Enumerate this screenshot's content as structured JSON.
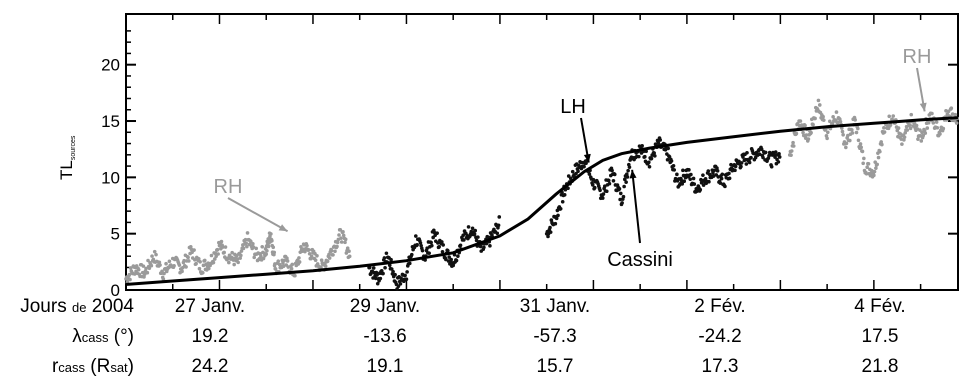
{
  "chart_data": {
    "type": "scatter",
    "title": "",
    "ylabel": "TL",
    "ylabel_sub": "sources",
    "xlim": [
      0,
      8.9
    ],
    "ylim": [
      0,
      24.5
    ],
    "yticks": [
      0,
      5,
      10,
      15,
      20
    ],
    "grid": false,
    "series": [
      {
        "color": "#9a9a9a",
        "segments": [
          {
            "x": [
              0.0,
              0.1,
              0.2,
              0.3,
              0.4,
              0.5,
              0.6,
              0.7,
              0.8,
              0.9,
              1.0,
              1.1,
              1.2,
              1.3,
              1.4,
              1.5,
              1.55,
              1.6,
              1.7,
              1.8,
              1.9,
              2.0,
              2.1,
              2.2,
              2.3,
              2.4
            ],
            "y": [
              1.0,
              2.0,
              1.5,
              3.0,
              1.5,
              2.5,
              2.0,
              3.5,
              2.0,
              2.5,
              4.0,
              3.0,
              2.5,
              4.5,
              3.0,
              3.5,
              5.0,
              2.0,
              2.5,
              1.5,
              4.0,
              3.0,
              2.0,
              3.5,
              5.0,
              3.0
            ]
          },
          {
            "x": [
              7.1,
              7.2,
              7.3,
              7.4,
              7.5,
              7.6,
              7.7,
              7.8,
              7.9,
              8.0,
              8.1,
              8.2,
              8.3,
              8.4,
              8.5,
              8.6,
              8.7,
              8.8,
              8.9
            ],
            "y": [
              12.0,
              15.0,
              13.5,
              16.5,
              14.0,
              15.5,
              13.0,
              15.0,
              11.0,
              10.5,
              14.0,
              15.5,
              13.0,
              15.0,
              13.5,
              15.5,
              14.0,
              16.0,
              15.0
            ]
          }
        ]
      },
      {
        "color": "#111111",
        "segments": [
          {
            "x": [
              2.6,
              2.7,
              2.8,
              2.9,
              3.0,
              3.1,
              3.2,
              3.3,
              3.4,
              3.5,
              3.6,
              3.7,
              3.8,
              3.9,
              4.0
            ],
            "y": [
              2.0,
              1.0,
              3.0,
              0.5,
              1.5,
              4.5,
              3.0,
              5.0,
              3.5,
              2.5,
              4.5,
              5.5,
              3.5,
              4.5,
              6.0
            ]
          },
          {
            "x": [
              4.5,
              4.6,
              4.7,
              4.8,
              4.9,
              5.0,
              5.1,
              5.2,
              5.3,
              5.4,
              5.5,
              5.6,
              5.7,
              5.8,
              5.9,
              6.0,
              6.1,
              6.2,
              6.3,
              6.4,
              6.5,
              6.6,
              6.7,
              6.8,
              6.9,
              7.0
            ],
            "y": [
              5.0,
              6.5,
              9.0,
              10.5,
              11.5,
              9.5,
              8.5,
              10.5,
              8.0,
              12.0,
              12.5,
              11.5,
              13.0,
              12.0,
              9.5,
              10.5,
              9.0,
              10.0,
              10.5,
              9.5,
              11.0,
              11.5,
              12.0,
              12.5,
              11.5,
              12.0
            ]
          }
        ]
      }
    ],
    "model_curve": {
      "name": "Cassini",
      "x": [
        0.0,
        0.5,
        1.0,
        1.5,
        2.0,
        2.5,
        3.0,
        3.5,
        4.0,
        4.3,
        4.6,
        4.9,
        5.1,
        5.3,
        5.6,
        6.0,
        6.5,
        7.0,
        7.5,
        8.0,
        8.5,
        8.9
      ],
      "y": [
        0.5,
        0.8,
        1.1,
        1.4,
        1.7,
        2.1,
        2.6,
        3.3,
        4.8,
        6.3,
        8.5,
        10.5,
        11.5,
        12.1,
        12.6,
        13.1,
        13.6,
        14.1,
        14.5,
        14.8,
        15.1,
        15.3
      ]
    },
    "annotations": [
      {
        "text": "RH",
        "color": "#9a9a9a",
        "x": 1.6,
        "y": 4.5
      },
      {
        "text": "LH",
        "color": "#000000",
        "x": 4.95,
        "y": 10.6
      },
      {
        "text": "Cassini",
        "color": "#000000",
        "x": 5.35,
        "y": 11.2
      },
      {
        "text": "RH",
        "color": "#9a9a9a",
        "x": 8.5,
        "y": 15.5
      }
    ]
  },
  "table": {
    "rows": [
      {
        "label_main": "Jours ",
        "label_small": "de",
        "label_tail": " 2004",
        "values": [
          "27 Janv.",
          "29 Janv.",
          "31 Janv.",
          "2 Fév.",
          "4 Fév."
        ]
      },
      {
        "label_main": "λ",
        "label_small": "cass",
        "label_tail": " (°)",
        "values": [
          "19.2",
          "-13.6",
          "-57.3",
          "-24.2",
          "17.5"
        ]
      },
      {
        "label_main": "r",
        "label_small": "cass",
        "label_tail": " (R",
        "label_small2": "sat",
        "label_tail2": ")",
        "values": [
          "24.2",
          "19.1",
          "15.7",
          "17.3",
          "21.8"
        ]
      }
    ]
  }
}
